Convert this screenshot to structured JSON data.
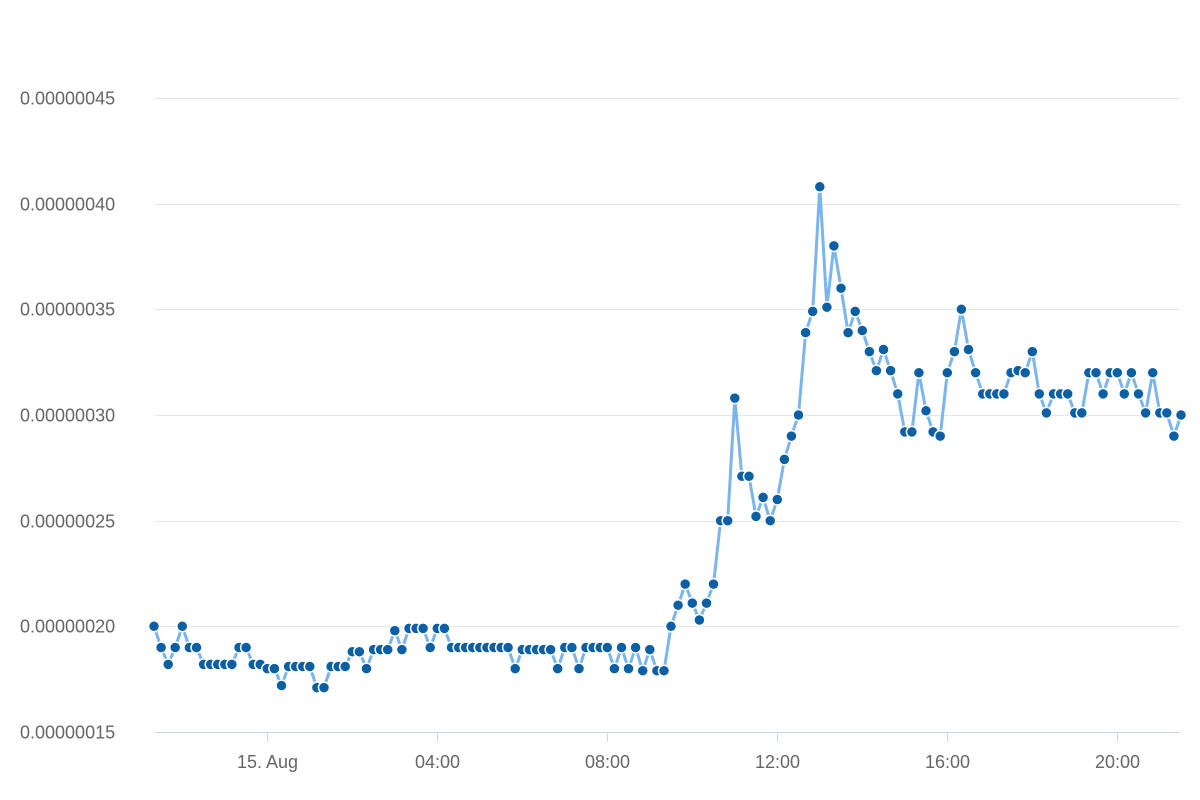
{
  "chart_data": {
    "type": "line",
    "title": "",
    "xlabel": "",
    "ylabel": "",
    "ylim": [
      1.5e-07,
      4.5e-07
    ],
    "xlim": [
      "08-14 21:20",
      "08-15 21:30"
    ],
    "grid": {
      "y": true,
      "x": false
    },
    "colors": {
      "line": "#7cb5ec",
      "marker": "#0b5fa5",
      "marker_stroke": "#ffffff",
      "grid": "#e6e6e6",
      "axis": "#ccd6eb",
      "label": "#666666"
    },
    "y_ticks": [
      {
        "value": 1.5e-07,
        "label": "0.00000015"
      },
      {
        "value": 2e-07,
        "label": "0.00000020"
      },
      {
        "value": 2.5e-07,
        "label": "0.00000025"
      },
      {
        "value": 3e-07,
        "label": "0.00000030"
      },
      {
        "value": 3.5e-07,
        "label": "0.00000035"
      },
      {
        "value": 4e-07,
        "label": "0.00000040"
      },
      {
        "value": 4.5e-07,
        "label": "0.00000045"
      }
    ],
    "x_ticks": [
      {
        "time": "08-15 00:00",
        "label": "15. Aug"
      },
      {
        "time": "08-15 04:00",
        "label": "04:00"
      },
      {
        "time": "08-15 08:00",
        "label": "08:00"
      },
      {
        "time": "08-15 12:00",
        "label": "12:00"
      },
      {
        "time": "08-15 16:00",
        "label": "16:00"
      },
      {
        "time": "08-15 20:00",
        "label": "20:00"
      }
    ],
    "x": [
      "08-14 21:20",
      "08-14 21:30",
      "08-14 21:40",
      "08-14 21:50",
      "08-14 22:00",
      "08-14 22:10",
      "08-14 22:20",
      "08-14 22:30",
      "08-14 22:40",
      "08-14 22:50",
      "08-14 23:00",
      "08-14 23:10",
      "08-14 23:20",
      "08-14 23:30",
      "08-14 23:40",
      "08-14 23:50",
      "08-15 00:00",
      "08-15 00:10",
      "08-15 00:20",
      "08-15 00:30",
      "08-15 00:40",
      "08-15 00:50",
      "08-15 01:00",
      "08-15 01:10",
      "08-15 01:20",
      "08-15 01:30",
      "08-15 01:40",
      "08-15 01:50",
      "08-15 02:00",
      "08-15 02:10",
      "08-15 02:20",
      "08-15 02:30",
      "08-15 02:40",
      "08-15 02:50",
      "08-15 03:00",
      "08-15 03:10",
      "08-15 03:20",
      "08-15 03:30",
      "08-15 03:40",
      "08-15 03:50",
      "08-15 04:00",
      "08-15 04:10",
      "08-15 04:20",
      "08-15 04:30",
      "08-15 04:40",
      "08-15 04:50",
      "08-15 05:00",
      "08-15 05:10",
      "08-15 05:20",
      "08-15 05:30",
      "08-15 05:40",
      "08-15 05:50",
      "08-15 06:00",
      "08-15 06:10",
      "08-15 06:20",
      "08-15 06:30",
      "08-15 06:40",
      "08-15 06:50",
      "08-15 07:00",
      "08-15 07:10",
      "08-15 07:20",
      "08-15 07:30",
      "08-15 07:40",
      "08-15 07:50",
      "08-15 08:00",
      "08-15 08:10",
      "08-15 08:20",
      "08-15 08:30",
      "08-15 08:40",
      "08-15 08:50",
      "08-15 09:00",
      "08-15 09:10",
      "08-15 09:20",
      "08-15 09:30",
      "08-15 09:40",
      "08-15 09:50",
      "08-15 10:00",
      "08-15 10:10",
      "08-15 10:20",
      "08-15 10:30",
      "08-15 10:40",
      "08-15 10:50",
      "08-15 11:00",
      "08-15 11:10",
      "08-15 11:20",
      "08-15 11:30",
      "08-15 11:40",
      "08-15 11:50",
      "08-15 12:00",
      "08-15 12:10",
      "08-15 12:20",
      "08-15 12:30",
      "08-15 12:40",
      "08-15 12:50",
      "08-15 13:00",
      "08-15 13:10",
      "08-15 13:20",
      "08-15 13:30",
      "08-15 13:40",
      "08-15 13:50",
      "08-15 14:00",
      "08-15 14:10",
      "08-15 14:20",
      "08-15 14:30",
      "08-15 14:40",
      "08-15 14:50",
      "08-15 15:00",
      "08-15 15:10",
      "08-15 15:20",
      "08-15 15:30",
      "08-15 15:40",
      "08-15 15:50",
      "08-15 16:00",
      "08-15 16:10",
      "08-15 16:20",
      "08-15 16:30",
      "08-15 16:40",
      "08-15 16:50",
      "08-15 17:00",
      "08-15 17:10",
      "08-15 17:20",
      "08-15 17:30",
      "08-15 17:40",
      "08-15 17:50",
      "08-15 18:00",
      "08-15 18:10",
      "08-15 18:20",
      "08-15 18:30",
      "08-15 18:40",
      "08-15 18:50",
      "08-15 19:00",
      "08-15 19:10",
      "08-15 19:20",
      "08-15 19:30",
      "08-15 19:40",
      "08-15 19:50",
      "08-15 20:00",
      "08-15 20:10",
      "08-15 20:20",
      "08-15 20:30",
      "08-15 20:40",
      "08-15 20:50",
      "08-15 21:00",
      "08-15 21:10",
      "08-15 21:20",
      "08-15 21:30"
    ],
    "values": [
      2e-07,
      1.9e-07,
      1.82e-07,
      1.9e-07,
      2e-07,
      1.9e-07,
      1.9e-07,
      1.82e-07,
      1.82e-07,
      1.82e-07,
      1.82e-07,
      1.82e-07,
      1.9e-07,
      1.9e-07,
      1.82e-07,
      1.82e-07,
      1.8e-07,
      1.8e-07,
      1.72e-07,
      1.81e-07,
      1.81e-07,
      1.81e-07,
      1.81e-07,
      1.71e-07,
      1.71e-07,
      1.81e-07,
      1.81e-07,
      1.81e-07,
      1.88e-07,
      1.88e-07,
      1.8e-07,
      1.89e-07,
      1.89e-07,
      1.89e-07,
      1.98e-07,
      1.89e-07,
      1.99e-07,
      1.99e-07,
      1.99e-07,
      1.9e-07,
      1.99e-07,
      1.99e-07,
      1.9e-07,
      1.9e-07,
      1.9e-07,
      1.9e-07,
      1.9e-07,
      1.9e-07,
      1.9e-07,
      1.9e-07,
      1.9e-07,
      1.8e-07,
      1.89e-07,
      1.89e-07,
      1.89e-07,
      1.89e-07,
      1.89e-07,
      1.8e-07,
      1.9e-07,
      1.9e-07,
      1.8e-07,
      1.9e-07,
      1.9e-07,
      1.9e-07,
      1.9e-07,
      1.8e-07,
      1.9e-07,
      1.8e-07,
      1.9e-07,
      1.79e-07,
      1.89e-07,
      1.79e-07,
      1.79e-07,
      2e-07,
      2.1e-07,
      2.2e-07,
      2.11e-07,
      2.03e-07,
      2.11e-07,
      2.2e-07,
      2.5e-07,
      2.5e-07,
      3.08e-07,
      2.71e-07,
      2.71e-07,
      2.52e-07,
      2.61e-07,
      2.5e-07,
      2.6e-07,
      2.79e-07,
      2.9e-07,
      3e-07,
      3.39e-07,
      3.49e-07,
      4.08e-07,
      3.51e-07,
      3.8e-07,
      3.6e-07,
      3.39e-07,
      3.49e-07,
      3.4e-07,
      3.3e-07,
      3.21e-07,
      3.31e-07,
      3.21e-07,
      3.1e-07,
      2.92e-07,
      2.92e-07,
      3.2e-07,
      3.02e-07,
      2.92e-07,
      2.9e-07,
      3.2e-07,
      3.3e-07,
      3.5e-07,
      3.31e-07,
      3.2e-07,
      3.1e-07,
      3.1e-07,
      3.1e-07,
      3.1e-07,
      3.2e-07,
      3.21e-07,
      3.2e-07,
      3.3e-07,
      3.1e-07,
      3.01e-07,
      3.1e-07,
      3.1e-07,
      3.1e-07,
      3.01e-07,
      3.01e-07,
      3.2e-07,
      3.2e-07,
      3.1e-07,
      3.2e-07,
      3.2e-07,
      3.1e-07,
      3.2e-07,
      3.1e-07,
      3.01e-07,
      3.2e-07,
      3.01e-07,
      3.01e-07,
      2.9e-07,
      3e-07
    ]
  }
}
